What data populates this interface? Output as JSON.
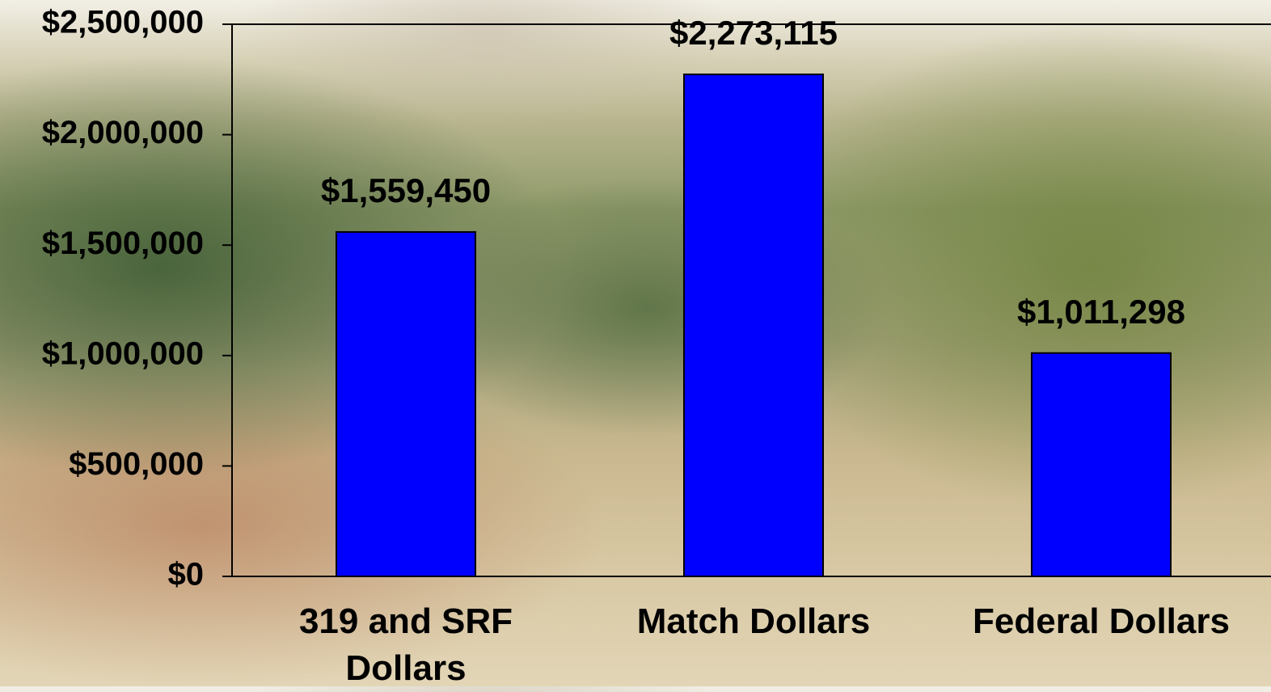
{
  "chart_data": {
    "type": "bar",
    "categories": [
      "319 and SRF Dollars",
      "Match Dollars",
      "Federal Dollars"
    ],
    "values": [
      1559450,
      2273115,
      1011298
    ],
    "value_labels": [
      "$1,559,450",
      "$2,273,115",
      "$1,011,298"
    ],
    "color": "#0000ff",
    "ylim": [
      0,
      2500000
    ],
    "yticks": [
      {
        "value": 0,
        "label": "$0"
      },
      {
        "value": 500000,
        "label": "$500,000"
      },
      {
        "value": 1000000,
        "label": "$1,000,000"
      },
      {
        "value": 1500000,
        "label": "$1,500,000"
      },
      {
        "value": 2000000,
        "label": "$2,000,000"
      },
      {
        "value": 2500000,
        "label": "$2,500,000"
      }
    ]
  }
}
